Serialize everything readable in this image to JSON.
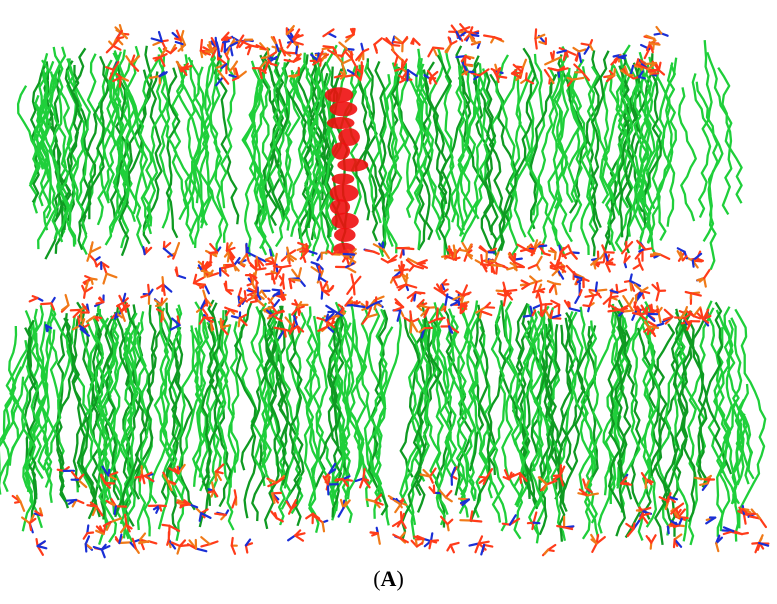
{
  "figure": {
    "description_icon": "lipid-bilayer-molecular-model-icon",
    "colors": {
      "lipid_tails": "#1fcf3a",
      "lipid_tails_dark": "#0f9a22",
      "oxygen_headgroups": "#ff3b1a",
      "phosphate": "#f07a18",
      "nitrogen": "#1a2fd6",
      "peptide": "#ee1010",
      "background": "#ffffff"
    }
  },
  "caption": {
    "open": "(",
    "letter": "A",
    "close": ")"
  }
}
